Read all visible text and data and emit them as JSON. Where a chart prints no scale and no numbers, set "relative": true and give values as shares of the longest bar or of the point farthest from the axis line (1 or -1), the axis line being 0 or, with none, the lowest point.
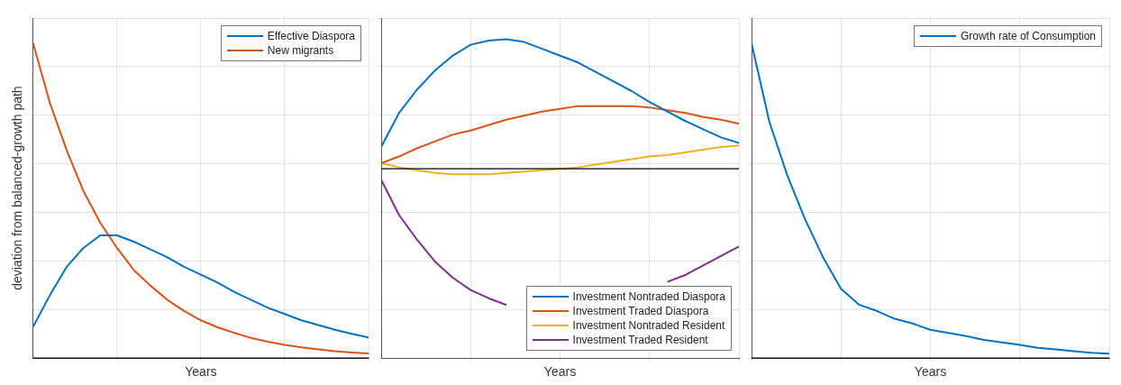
{
  "chart_data": [
    {
      "type": "line",
      "relative": true,
      "xlabel": "Years",
      "ylabel": "deviation from balanced-growth path",
      "grid": true,
      "legend": "top right",
      "categories": [
        null,
        null,
        null,
        null,
        null,
        null,
        null,
        null,
        null,
        null,
        null,
        null,
        null,
        null,
        null,
        null,
        null,
        null,
        null,
        null,
        null
      ],
      "series": [
        {
          "name": "Effective Diaspora",
          "color": "#0072bd",
          "values": [
            0.1,
            0.2,
            0.29,
            0.35,
            0.39,
            0.39,
            0.37,
            0.345,
            0.32,
            0.29,
            0.265,
            0.24,
            0.21,
            0.185,
            0.16,
            0.14,
            0.12,
            0.105,
            0.09,
            0.077,
            0.066
          ]
        },
        {
          "name": "New migrants",
          "color": "#d95319",
          "values": [
            1,
            0.81,
            0.66,
            0.53,
            0.43,
            0.35,
            0.28,
            0.23,
            0.185,
            0.15,
            0.12,
            0.098,
            0.08,
            0.064,
            0.052,
            0.042,
            0.034,
            0.028,
            0.022,
            0.018,
            0.015
          ]
        }
      ]
    },
    {
      "type": "line",
      "relative": true,
      "xlabel": "Years",
      "grid": true,
      "legend": "bottom right",
      "categories": [
        null,
        null,
        null,
        null,
        null,
        null,
        null,
        null,
        null,
        null,
        null,
        null,
        null,
        null,
        null,
        null,
        null,
        null,
        null,
        null,
        null
      ],
      "series": [
        {
          "name": "Investment Nontraded Diaspora",
          "color": "#0072bd",
          "values": [
            0.16,
            0.41,
            0.58,
            0.72,
            0.83,
            0.91,
            0.94,
            0.95,
            0.93,
            0.88,
            0.83,
            0.78,
            0.71,
            0.64,
            0.57,
            0.49,
            0.42,
            0.35,
            0.29,
            0.23,
            0.19
          ]
        },
        {
          "name": "Investment Traded Diaspora",
          "color": "#d95319",
          "values": [
            0.04,
            0.09,
            0.15,
            0.2,
            0.25,
            0.28,
            0.32,
            0.36,
            0.39,
            0.42,
            0.44,
            0.46,
            0.46,
            0.46,
            0.46,
            0.45,
            0.43,
            0.41,
            0.38,
            0.36,
            0.33
          ]
        },
        {
          "name": "Investment Nontraded Resident",
          "color": "#edb120",
          "values": [
            0.04,
            0.01,
            -0.01,
            -0.03,
            -0.04,
            -0.04,
            -0.04,
            -0.03,
            -0.02,
            -0.01,
            0,
            0.01,
            0.03,
            0.05,
            0.07,
            0.09,
            0.1,
            0.12,
            0.14,
            0.16,
            0.17
          ]
        },
        {
          "name": "Investment Traded Resident",
          "color": "#7e2f8e",
          "values": [
            -0.08,
            -0.34,
            -0.52,
            -0.68,
            -0.8,
            -0.89,
            -0.95,
            -1,
            null,
            null,
            null,
            null,
            null,
            null,
            null,
            null,
            -0.83,
            -0.78,
            -0.71,
            -0.64,
            -0.57
          ]
        }
      ]
    },
    {
      "type": "line",
      "relative": true,
      "xlabel": "Years",
      "grid": true,
      "legend": "top right",
      "categories": [
        null,
        null,
        null,
        null,
        null,
        null,
        null,
        null,
        null,
        null,
        null,
        null,
        null,
        null,
        null,
        null,
        null,
        null,
        null,
        null,
        null
      ],
      "series": [
        {
          "name": "Growth rate of Consumption",
          "color": "#0072bd",
          "values": [
            1,
            0.75,
            0.58,
            0.44,
            0.32,
            0.22,
            0.17,
            0.15,
            0.125,
            0.11,
            0.09,
            0.08,
            0.07,
            0.058,
            0.05,
            0.042,
            0.033,
            0.028,
            0.022,
            0.017,
            0.014
          ]
        }
      ]
    }
  ]
}
